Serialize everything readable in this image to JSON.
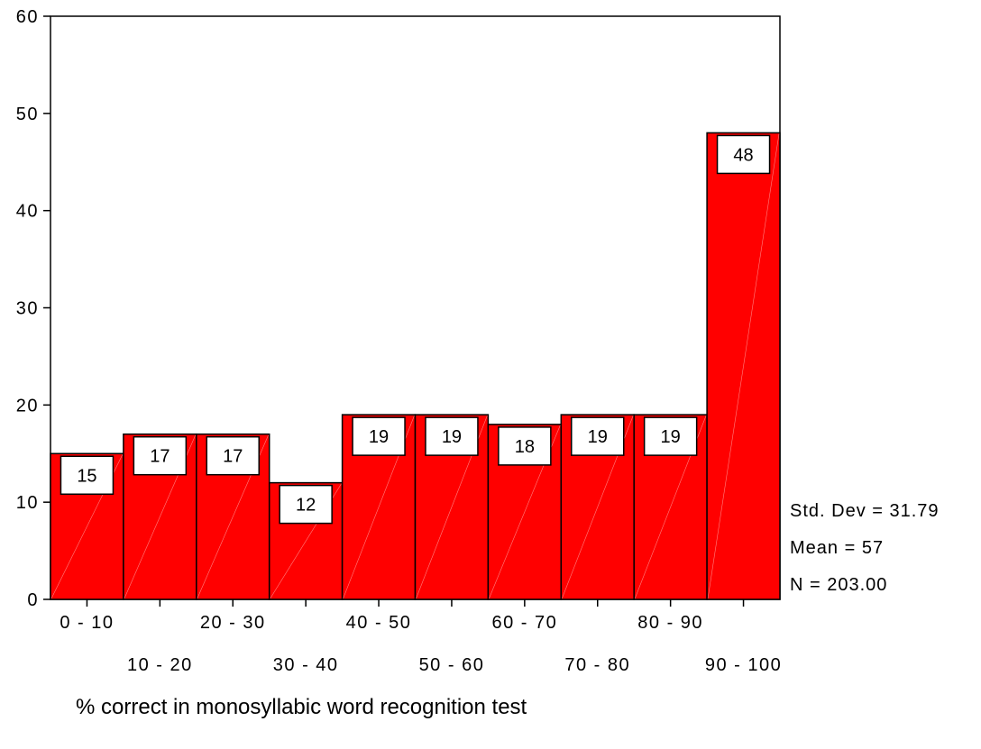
{
  "chart_data": {
    "type": "bar",
    "title": "",
    "xlabel": "% correct in monosyllabic word recognition test",
    "ylabel": "",
    "categories": [
      "0 - 10",
      "10 - 20",
      "20 - 30",
      "30 - 40",
      "40 - 50",
      "50 - 60",
      "60 - 70",
      "70 - 80",
      "80 - 90",
      "90 - 100"
    ],
    "values": [
      15,
      17,
      17,
      12,
      19,
      19,
      18,
      19,
      19,
      48
    ],
    "data_labels": [
      "15",
      "17",
      "17",
      "12",
      "19",
      "19",
      "18",
      "19",
      "19",
      "48"
    ],
    "ylim": [
      0,
      60
    ],
    "yticks": [
      0,
      10,
      20,
      30,
      40,
      50,
      60
    ],
    "ytick_labels": [
      "0",
      "10",
      "20",
      "30",
      "40",
      "50",
      "60"
    ],
    "bar_color": "#ff0000",
    "bar_edge_color": "#000000",
    "grid": false,
    "legend": "none",
    "stats": {
      "std_dev": "Std. Dev = 31.79",
      "mean": "Mean = 57",
      "n": "N = 203.00"
    }
  }
}
